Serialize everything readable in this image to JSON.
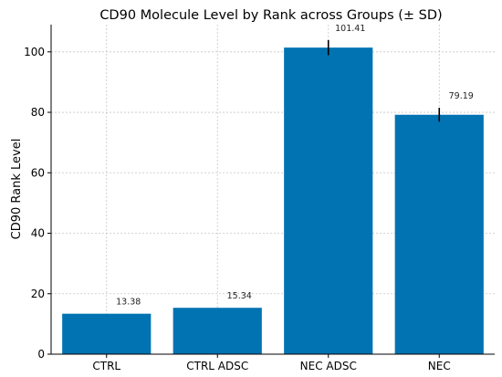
{
  "chart_data": {
    "type": "bar",
    "title": "CD90 Molecule Level by Rank across Groups (± SD)",
    "xlabel": "",
    "ylabel": "CD90 Rank Level",
    "categories": [
      "CTRL",
      "CTRL ADSC",
      "NEC ADSC",
      "NEC"
    ],
    "values": [
      13.38,
      15.34,
      101.41,
      79.19
    ],
    "errors": [
      0,
      0,
      2.5,
      2.3
    ],
    "value_labels": [
      "13.38",
      "15.34",
      "101.41",
      "79.19"
    ],
    "ylim": [
      0,
      109
    ],
    "yticks": [
      0,
      20,
      40,
      60,
      80,
      100
    ],
    "grid": true,
    "bar_color": "#0173b2",
    "error_color": "#000000",
    "grid_color": "#b0b0b0"
  }
}
